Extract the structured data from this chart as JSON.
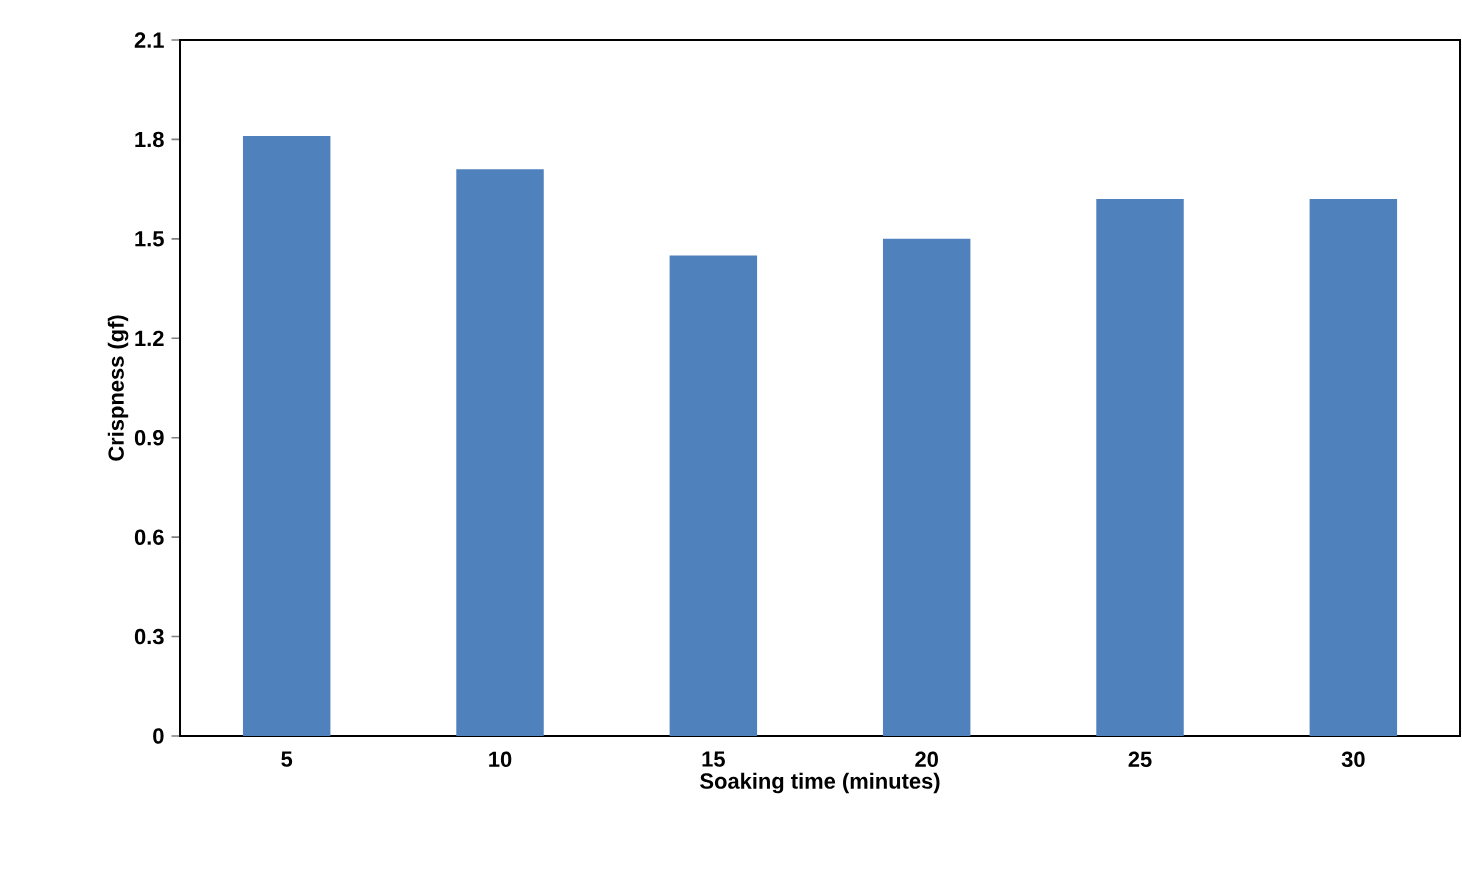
{
  "chart_data": {
    "type": "bar",
    "xlabel": "Soaking time (minutes)",
    "ylabel": "Crispness (gf)",
    "categories": [
      "5",
      "10",
      "15",
      "20",
      "25",
      "30"
    ],
    "values": [
      1.81,
      1.71,
      1.45,
      1.5,
      1.62,
      1.62
    ],
    "color": "#4f81bd",
    "ylim": [
      0,
      2.1
    ],
    "yticks": [
      0,
      0.3,
      0.6,
      0.9,
      1.2,
      1.5,
      1.8,
      2.1
    ]
  }
}
